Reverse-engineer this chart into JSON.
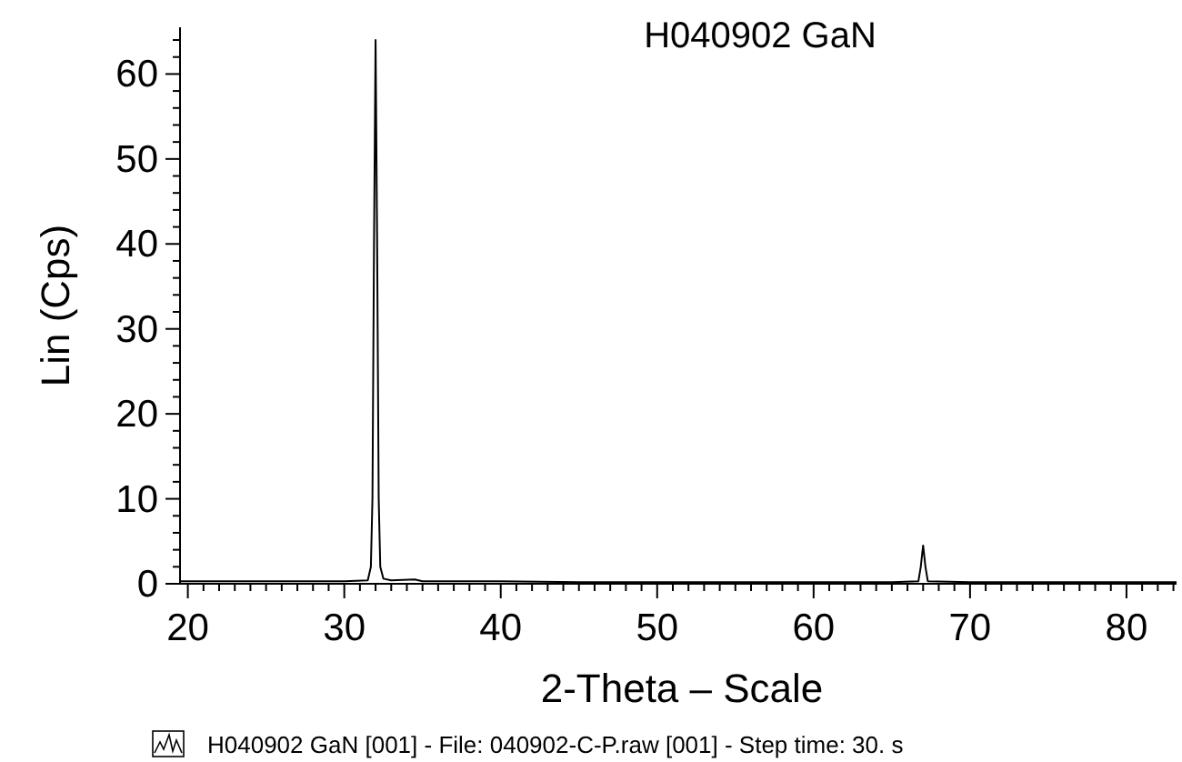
{
  "chart_data": {
    "type": "line",
    "title": "H040902 GaN",
    "xlabel": "2-Theta – Scale",
    "ylabel": "Lin (Cps)",
    "annotations": [
      "H040902 GaN [001] - File: 040902-C-P.raw [001] - Step time: 30. s"
    ],
    "x": [
      19.5,
      22,
      25,
      28,
      30,
      31.5,
      31.7,
      31.8,
      31.9,
      32.0,
      32.1,
      32.2,
      32.3,
      32.5,
      33,
      34.5,
      35,
      40,
      45,
      50,
      55,
      60,
      65,
      66.7,
      66.85,
      67.0,
      67.15,
      67.3,
      70,
      75,
      80,
      83.2
    ],
    "series": [
      {
        "color": "#000000",
        "values": [
          0.3,
          0.3,
          0.3,
          0.3,
          0.3,
          0.4,
          2,
          10,
          40,
          64,
          40,
          10,
          2,
          0.6,
          0.4,
          0.5,
          0.3,
          0.3,
          0.2,
          0.2,
          0.2,
          0.2,
          0.2,
          0.3,
          2,
          4.5,
          2,
          0.3,
          0.2,
          0.2,
          0.2,
          0.2
        ]
      }
    ],
    "xlim": [
      19.5,
      83.2
    ],
    "ylim": [
      0,
      65.5
    ],
    "xticks": [
      20,
      {
        "value": 21,
        "label": null
      },
      {
        "value": 22,
        "label": null
      },
      {
        "value": 23,
        "label": null
      },
      {
        "value": 24,
        "label": null
      },
      {
        "value": 25,
        "label": null
      },
      {
        "value": 26,
        "label": null
      },
      {
        "value": 27,
        "label": null
      },
      {
        "value": 28,
        "label": null
      },
      {
        "value": 29,
        "label": null
      },
      30,
      {
        "value": 31,
        "label": null
      },
      {
        "value": 32,
        "label": null
      },
      {
        "value": 33,
        "label": null
      },
      {
        "value": 34,
        "label": null
      },
      {
        "value": 35,
        "label": null
      },
      {
        "value": 36,
        "label": null
      },
      {
        "value": 37,
        "label": null
      },
      {
        "value": 38,
        "label": null
      },
      {
        "value": 39,
        "label": null
      },
      40,
      {
        "value": 41,
        "label": null
      },
      {
        "value": 42,
        "label": null
      },
      {
        "value": 43,
        "label": null
      },
      {
        "value": 44,
        "label": null
      },
      {
        "value": 45,
        "label": null
      },
      {
        "value": 46,
        "label": null
      },
      {
        "value": 47,
        "label": null
      },
      {
        "value": 48,
        "label": null
      },
      {
        "value": 49,
        "label": null
      },
      50,
      {
        "value": 51,
        "label": null
      },
      {
        "value": 52,
        "label": null
      },
      {
        "value": 53,
        "label": null
      },
      {
        "value": 54,
        "label": null
      },
      {
        "value": 55,
        "label": null
      },
      {
        "value": 56,
        "label": null
      },
      {
        "value": 57,
        "label": null
      },
      {
        "value": 58,
        "label": null
      },
      {
        "value": 59,
        "label": null
      },
      60,
      {
        "value": 61,
        "label": null
      },
      {
        "value": 62,
        "label": null
      },
      {
        "value": 63,
        "label": null
      },
      {
        "value": 64,
        "label": null
      },
      {
        "value": 65,
        "label": null
      },
      {
        "value": 66,
        "label": null
      },
      {
        "value": 67,
        "label": null
      },
      {
        "value": 68,
        "label": null
      },
      {
        "value": 69,
        "label": null
      },
      70,
      {
        "value": 71,
        "label": null
      },
      {
        "value": 72,
        "label": null
      },
      {
        "value": 73,
        "label": null
      },
      {
        "value": 74,
        "label": null
      },
      {
        "value": 75,
        "label": null
      },
      {
        "value": 76,
        "label": null
      },
      {
        "value": 77,
        "label": null
      },
      {
        "value": 78,
        "label": null
      },
      {
        "value": 79,
        "label": null
      },
      80,
      {
        "value": 81,
        "label": null
      },
      {
        "value": 82,
        "label": null
      },
      {
        "value": 83,
        "label": null
      }
    ],
    "yticks": [
      0,
      {
        "value": 2,
        "label": null
      },
      {
        "value": 4,
        "label": null
      },
      {
        "value": 6,
        "label": null
      },
      {
        "value": 8,
        "label": null
      },
      10,
      {
        "value": 12,
        "label": null
      },
      {
        "value": 14,
        "label": null
      },
      {
        "value": 16,
        "label": null
      },
      {
        "value": 18,
        "label": null
      },
      20,
      {
        "value": 22,
        "label": null
      },
      {
        "value": 24,
        "label": null
      },
      {
        "value": 26,
        "label": null
      },
      {
        "value": 28,
        "label": null
      },
      30,
      {
        "value": 32,
        "label": null
      },
      {
        "value": 34,
        "label": null
      },
      {
        "value": 36,
        "label": null
      },
      {
        "value": 38,
        "label": null
      },
      40,
      {
        "value": 42,
        "label": null
      },
      {
        "value": 44,
        "label": null
      },
      {
        "value": 46,
        "label": null
      },
      {
        "value": 48,
        "label": null
      },
      50,
      {
        "value": 52,
        "label": null
      },
      {
        "value": 54,
        "label": null
      },
      {
        "value": 56,
        "label": null
      },
      {
        "value": 58,
        "label": null
      },
      60,
      {
        "value": 62,
        "label": null
      },
      {
        "value": 64,
        "label": null
      }
    ],
    "grid": false,
    "marker": "none",
    "line_style": "solid"
  }
}
